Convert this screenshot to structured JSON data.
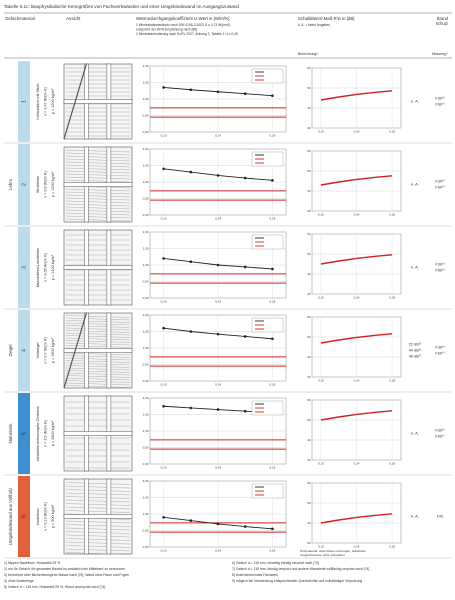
{
  "title": "Tabelle 5.1c: Bauphysikalische Kenngrößen von Fachwerkwänden und einer Umgebindewand im Ausgangszustand",
  "headers": {
    "material": "Gefachmaterial",
    "view": "Ansicht",
    "u_value": "Wärmedurchgangskoeffizient U-Wert in [W/m²K]",
    "u_notes": [
      "1 Mindestwärmeschutz nach DIN 4108-2:2003 U ≤ 0,73 W/(m²K)",
      "entspricht der WTA-Empfehlung nach [56]",
      "2 Mindestanforderung nach EnEV 2007, Anhang 3, Tabelle 1 U ≤ 0,45"
    ],
    "sound": "Schalldämm-Maß R'w in [dB]",
    "sound_note": "k. A. = keine Angaben",
    "sound_sub": "Berechnung³⁾",
    "fire": [
      "Brand",
      "schutz"
    ],
    "fire_sub": "Messung⁴⁾"
  },
  "u_axis": {
    "x": [
      0.1,
      0.12,
      0.14,
      0.16,
      0.18
    ],
    "xlim": [
      0.09,
      0.19
    ],
    "xticks": [
      {
        "value": 0.1,
        "label": "0,10"
      },
      {
        "value": 0.14,
        "label": "0,14"
      },
      {
        "value": 0.18,
        "label": "0,18"
      }
    ],
    "ylim": [
      0,
      2
    ],
    "yticks": [
      {
        "value": 0,
        "label": "0,00"
      },
      {
        "value": 0.5,
        "label": "0,50"
      },
      {
        "value": 1,
        "label": "1,00"
      },
      {
        "value": 1.5,
        "label": "1,50"
      },
      {
        "value": 2,
        "label": "2,00"
      }
    ],
    "refs": [
      0.73,
      0.45
    ],
    "line_color": "#222",
    "ref_color": "#d42020"
  },
  "sound_axis": {
    "x": [
      0.1,
      0.12,
      0.14,
      0.16,
      0.18
    ],
    "xlim": [
      0.09,
      0.19
    ],
    "xticks": [
      {
        "value": 0.1,
        "label": "0,10"
      },
      {
        "value": 0.14,
        "label": "0,14"
      },
      {
        "value": 0.18,
        "label": "0,18"
      }
    ],
    "ylim": [
      30,
      60
    ],
    "yticks": [
      30,
      40,
      50,
      60
    ],
    "color": "#d42020"
  },
  "rows": [
    {
      "number": "1",
      "color": "#bcdcee",
      "material": [
        "Lehmwickel mit Stroh",
        "λ = 0,47 W/(m·K)",
        "ρ = 1200 kg/m³"
      ],
      "u_values": [
        1.35,
        1.28,
        1.22,
        1.16,
        1.1
      ],
      "sound_values": [
        44,
        45.5,
        46.8,
        47.8,
        48.6
      ],
      "measure": [
        "k. A."
      ],
      "fire": [
        "F30⁸⁾",
        "F60⁹⁾"
      ]
    },
    {
      "number": "2",
      "group": "Lehm",
      "color": "#bcdcee",
      "material": [
        "Strohlehm",
        "λ = 0,6 W/(m·K)",
        "ρ = 1200 kg/m³"
      ],
      "u_values": [
        1.4,
        1.3,
        1.2,
        1.12,
        1.05
      ],
      "sound_values": [
        43,
        44.5,
        45.8,
        46.8,
        47.6
      ],
      "measure": [
        "k. A."
      ],
      "fire": [
        "F30⁸⁾",
        "F60⁹⁾"
      ]
    },
    {
      "number": "3",
      "color": "#bcdcee",
      "material": [
        "Massivlehm/Leichtlehm",
        "λ = 0,35 W/(m·K)",
        "ρ = 1400 kg/m³"
      ],
      "u_values": [
        1.2,
        1.1,
        1.0,
        0.94,
        0.88
      ],
      "sound_values": [
        45,
        46.5,
        47.8,
        48.8,
        49.6
      ],
      "measure": [
        "k. A."
      ],
      "fire": [
        "F30⁸⁾",
        "F60⁹⁾"
      ]
    },
    {
      "number": "4",
      "group": "Ziegel",
      "color": "#bcdcee",
      "material": [
        "Vollziegel",
        "λ = 0,7 W/(m·K)",
        "ρ = 1800 kg/m³"
      ],
      "u_values": [
        1.6,
        1.5,
        1.42,
        1.35,
        1.28
      ],
      "sound_values": [
        47,
        48.5,
        49.8,
        50.8,
        51.6
      ],
      "measure": [
        "22 dB⁵⁾",
        "44 dB⁶⁾",
        "46 dB⁷⁾"
      ],
      "fire": [
        "F30⁸⁾",
        "F60⁹⁾"
      ]
    },
    {
      "number": "5",
      "group": "Naturstein",
      "color": "#3b8fd0",
      "material": [
        "kristalline metamorphe Gesteine",
        "λ = 3,5 W/(m·K)",
        "ρ = 2800 kg/m³"
      ],
      "u_values": [
        1.75,
        1.7,
        1.65,
        1.6,
        1.55
      ],
      "sound_values": [
        50,
        51.5,
        52.8,
        53.8,
        54.6
      ],
      "measure": [
        "k. A."
      ],
      "fire": [
        "F30⁸⁾",
        "F60⁹⁾"
      ]
    },
    {
      "number": "6",
      "group": "Umgebindewand aus Vollholz",
      "color": "#e0603e",
      "material": [
        "Nadelholz",
        "λ = 0,13 W/(m·K)",
        "ρ = 500 kg/m³"
      ],
      "u_values": [
        0.9,
        0.8,
        0.7,
        0.62,
        0.55
      ],
      "sound_values": [
        40,
        41.5,
        42.8,
        43.8,
        44.6
      ],
      "measure": [
        "k. A."
      ],
      "fire": [
        "F90"
      ],
      "sound_note": [
        "Holzmaterial, ohne Risse und Fugen; praktische",
        "Vergleichswerte nicht vorhanden"
      ]
    }
  ],
  "footnotes_left": [
    "1) Nippen Nadelholz: Holzanteil 25 %",
    "2) nur für Gefach; für gesamtes Bauteil ist zusätzlich ein Mittelwert zu berechnen",
    "3) berechnet über flächenbezogene Masse nach [76], Wand ohne Risse und Fugen",
    "4) ohne Nutzbelege",
    "5) Gefach d = 115 mm, Holzanteil 25 %, Wand unverputzt nach [74]"
  ],
  "footnotes_right": [
    "6) Gefach d = 115 mm, einseitig bündig verputzt nach [74]",
    "7) Gefach d = 115 mm, bündig verputzt und andere Wandseite vollflächig verputzt nach [74]",
    "8) feuerhemmendes Fachwerk",
    "9) möglich bei Verwendung entsprechender Querschnitte und vollständiger Verputzung"
  ]
}
